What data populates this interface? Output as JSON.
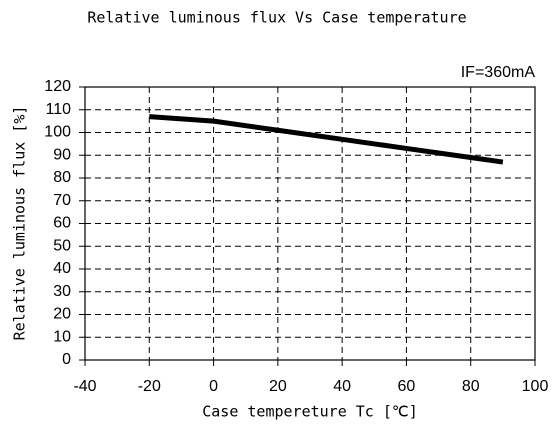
{
  "chart_data": {
    "type": "line",
    "title": "Relative luminous flux Vs Case temperature",
    "annotation": "IF=360mA",
    "x_label": "Case tempereture  Tc  [℃]",
    "y_label": "Relative luminous flux  [%]",
    "x": [
      -20,
      0,
      20,
      40,
      60,
      80,
      90
    ],
    "values": [
      107,
      105,
      101,
      97,
      93,
      89,
      87
    ],
    "color": "#000000",
    "xlim": [
      -40,
      100
    ],
    "xticks": [
      -40,
      -20,
      0,
      20,
      40,
      60,
      80,
      100
    ],
    "ylim": [
      0,
      120
    ],
    "yticks": [
      0,
      10,
      20,
      30,
      40,
      50,
      60,
      70,
      80,
      90,
      100,
      110,
      120
    ],
    "grid": true
  }
}
